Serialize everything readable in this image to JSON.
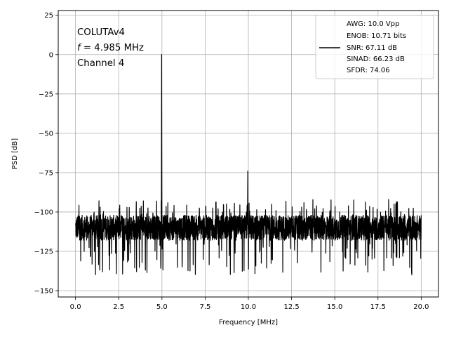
{
  "chart_data": {
    "type": "line",
    "xlabel": "Frequency [MHz]",
    "ylabel": "PSD [dB]",
    "xlim": [
      -1.0,
      21.0
    ],
    "ylim": [
      -154,
      28
    ],
    "xticks": [
      0.0,
      2.5,
      5.0,
      7.5,
      10.0,
      12.5,
      15.0,
      17.5,
      20.0
    ],
    "xtick_labels": [
      "0.0",
      "2.5",
      "5.0",
      "7.5",
      "10.0",
      "12.5",
      "15.0",
      "17.5",
      "20.0"
    ],
    "yticks": [
      25,
      0,
      -25,
      -50,
      -75,
      -100,
      -125,
      -150
    ],
    "ytick_labels": [
      "25",
      "0",
      "−25",
      "−50",
      "−75",
      "−100",
      "−125",
      "−150"
    ],
    "grid": true,
    "line_color": "#000000",
    "annotation": {
      "line1": "COLUTAv4",
      "line2_italic": "f",
      "line2_rest": " = 4.985 MHz",
      "line3": "Channel 4"
    },
    "legend": {
      "placement": "top-right",
      "lines": [
        "AWG: 10.0 Vpp",
        "ENOB: 10.71 bits",
        "SNR: 67.11 dB",
        "SINAD: 66.23 dB",
        "SFDR: 74.06"
      ]
    },
    "series": [
      {
        "x_range": [
          0.0,
          20.0
        ],
        "noise_floor_mean": -110,
        "noise_floor_spread": [
          -147,
          -90
        ],
        "peaks": [
          {
            "x": 4.985,
            "y": 0
          },
          {
            "x": 9.97,
            "y": -74
          }
        ]
      }
    ]
  }
}
